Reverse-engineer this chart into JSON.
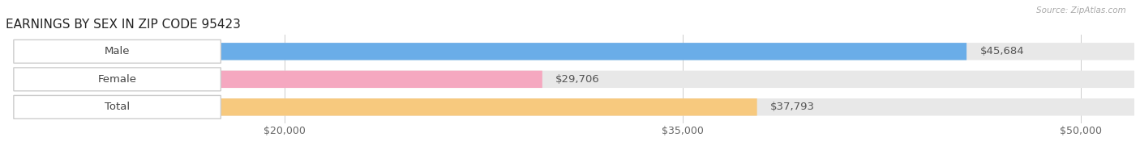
{
  "title": "EARNINGS BY SEX IN ZIP CODE 95423",
  "source": "Source: ZipAtlas.com",
  "categories": [
    "Male",
    "Female",
    "Total"
  ],
  "values": [
    45684,
    29706,
    37793
  ],
  "bar_colors": [
    "#6aade8",
    "#f5a8c0",
    "#f7c97e"
  ],
  "track_color": "#e8e8e8",
  "value_labels": [
    "$45,684",
    "$29,706",
    "$37,793"
  ],
  "xmin": 10000,
  "xmax": 52000,
  "xticks": [
    20000,
    35000,
    50000
  ],
  "xtick_labels": [
    "$20,000",
    "$35,000",
    "$50,000"
  ],
  "title_fontsize": 11,
  "bar_height": 0.62,
  "background_color": "#ffffff",
  "text_color": "#666666",
  "val_label_fontsize": 9.5,
  "cat_label_fontsize": 9.5,
  "axis_label_fontsize": 9
}
